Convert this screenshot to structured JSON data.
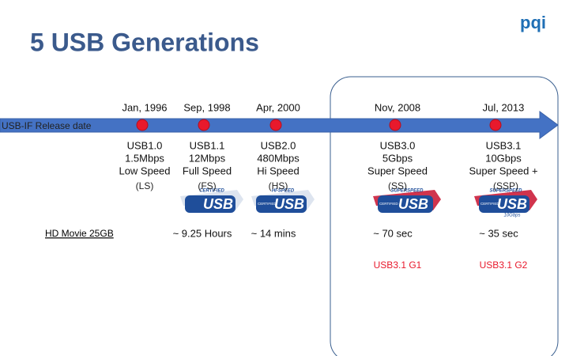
{
  "header": {
    "title": "5 USB Generations",
    "logo": "pqi"
  },
  "timeline": {
    "label": "USB-IF Release date",
    "row_label": "HD Movie 25GB"
  },
  "generations": [
    {
      "date": "Jan, 1996",
      "name": "USB1.0",
      "rate": "1.5Mbps",
      "speed": "Low Speed",
      "abbrev": "(LS)"
    },
    {
      "date": "Sep, 1998",
      "name": "USB1.1",
      "rate": "12Mbps",
      "speed": "Full Speed",
      "abbrev": "(FS)",
      "badge": {
        "top": "CERTIFIED",
        "main": "USB"
      },
      "time": "~ 9.25 Hours"
    },
    {
      "date": "Apr, 2000",
      "name": "USB2.0",
      "rate": "480Mbps",
      "speed": "Hi Speed",
      "abbrev": "(HS)",
      "badge": {
        "top": "HI-SPEED",
        "side": "CERTIFIED",
        "main": "USB"
      },
      "time": "~ 14 mins"
    },
    {
      "date": "Nov, 2008",
      "name": "USB3.0",
      "rate": "5Gbps",
      "speed": "Super Speed",
      "abbrev": "(SS)",
      "badge": {
        "top": "SUPERSPEED",
        "side": "CERTIFIED",
        "main": "USB"
      },
      "time": "~ 70 sec",
      "new_name": "USB3.1 G1"
    },
    {
      "date": "Jul, 2013",
      "name": "USB3.1",
      "rate": "10Gbps",
      "speed": "Super Speed +",
      "abbrev": "(SSP)",
      "badge": {
        "top": "SUPERSPEED",
        "side": "CERTIFIED",
        "main": "USB",
        "bottom": "10Gbps"
      },
      "time": "~ 35 sec",
      "new_name": "USB3.1 G2"
    }
  ]
}
